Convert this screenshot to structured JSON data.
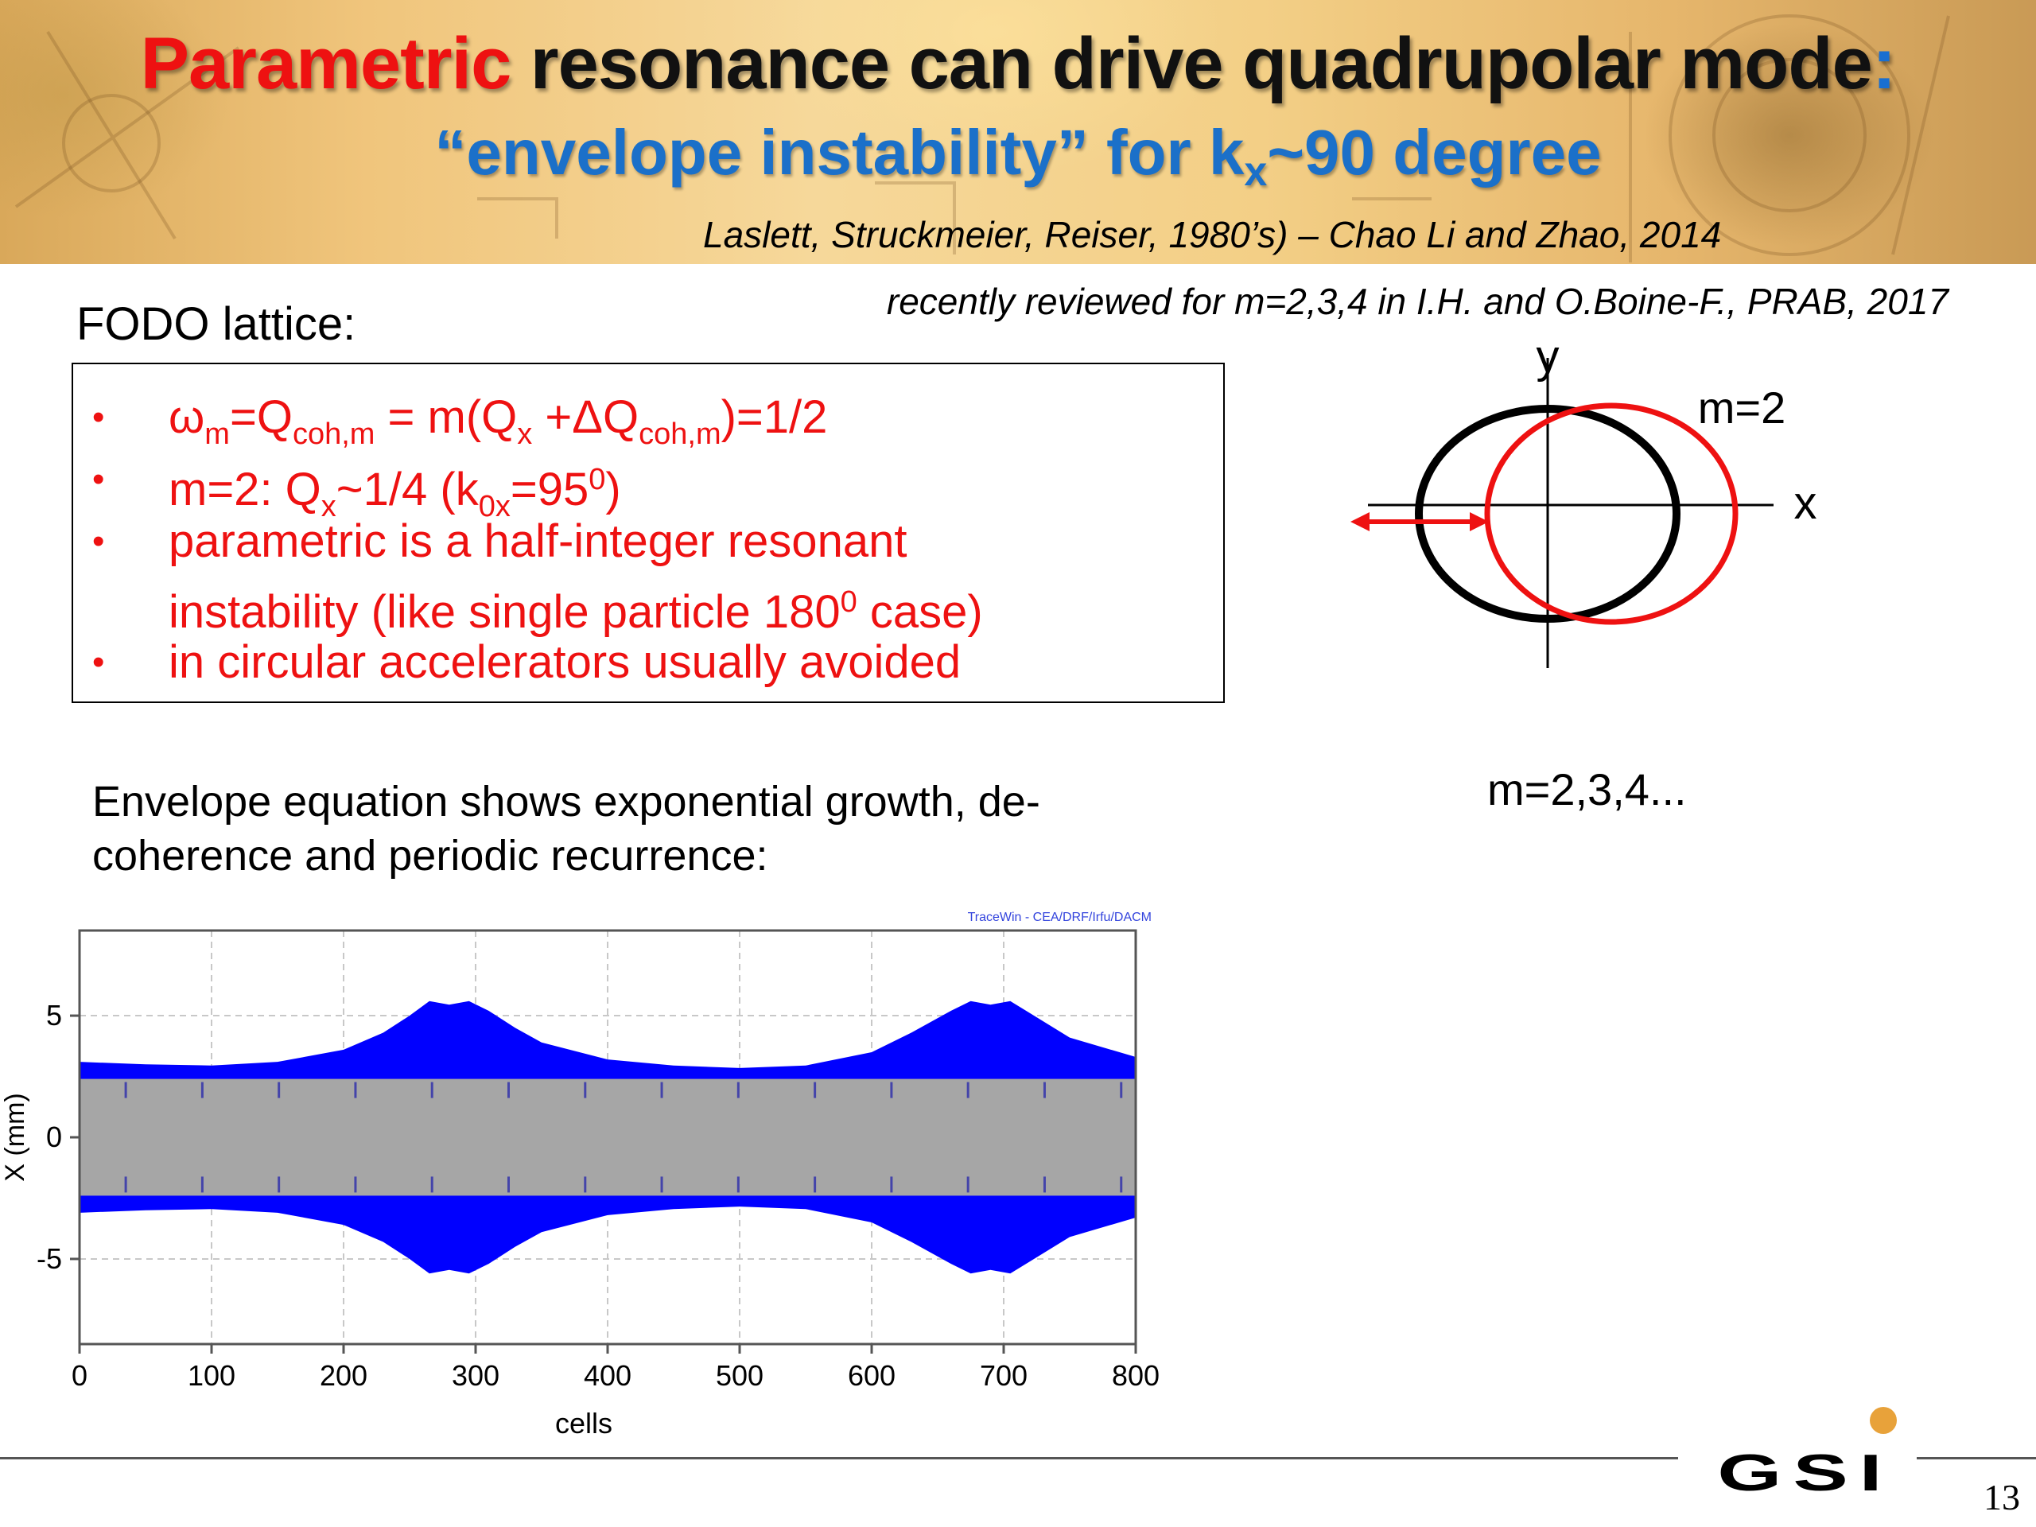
{
  "header": {
    "title_red": "Parametric",
    "title_black": " resonance can drive quadrupolar mode",
    "title_colon": ":",
    "subtitle_pre": "“envelope instability” for k",
    "subtitle_sub": "x",
    "subtitle_post": "~90 degree",
    "reference": "Laslett, Struckmeier, Reiser, 1980’s) – Chao Li and Zhao, 2014"
  },
  "review_note": "recently reviewed for m=2,3,4 in I.H. and O.Boine-F., PRAB, 2017",
  "fodo": {
    "label": "FODO lattice:",
    "bullet_symbol": "•",
    "b1": {
      "omega": "ω",
      "m_sub": "m",
      "eq1": "=Q",
      "coh_sub1": "coh,m",
      "eq2": " = m(Q",
      "x_sub": "x",
      "eq3": " +ΔQ",
      "coh_sub2": "coh,m",
      "eq4": ")=1/2"
    },
    "b2": {
      "pre": "m=2: Q",
      "x_sub": "x",
      "mid": "~1/4 (k",
      "k_sub": "0x",
      "post": "=95",
      "sup": "0",
      "end": ")"
    },
    "b3": {
      "line1": "parametric is a half-integer resonant",
      "line2_pre": "instability (like single particle 180",
      "line2_sup": "0",
      "line2_post": " case)"
    },
    "b4": "in circular accelerators usually avoided"
  },
  "diagram": {
    "y_label": "y",
    "x_label": "x",
    "mode_label": "m=2",
    "colors": {
      "unperturbed": "#000000",
      "perturbed": "#ee1111"
    }
  },
  "modes_label": "m=2,3,4...",
  "envelope_text": {
    "line1": "Envelope equation shows exponential growth, de-",
    "line2": "coherence and periodic recurrence:"
  },
  "chart_data": {
    "type": "area",
    "watermark": "TraceWin - CEA/DRF/Irfu/DACM",
    "xlabel": "cells",
    "ylabel": "X (mm)",
    "xlim": [
      0,
      800
    ],
    "ylim": [
      -8.5,
      8.5
    ],
    "xticks": [
      "0",
      "100",
      "200",
      "300",
      "400",
      "500",
      "600",
      "700",
      "800"
    ],
    "yticks": [
      "5",
      "0",
      "-5"
    ],
    "grid": true,
    "series": [
      {
        "color": "#0000ff",
        "x": [
          0,
          50,
          100,
          150,
          200,
          230,
          250,
          265,
          280,
          295,
          310,
          330,
          350,
          400,
          450,
          500,
          550,
          600,
          630,
          660,
          675,
          690,
          705,
          720,
          750,
          800
        ],
        "upper": [
          3.1,
          3.0,
          2.95,
          3.1,
          3.6,
          4.3,
          5.0,
          5.6,
          5.45,
          5.6,
          5.2,
          4.5,
          3.9,
          3.2,
          2.95,
          2.85,
          2.95,
          3.5,
          4.3,
          5.2,
          5.6,
          5.45,
          5.6,
          5.1,
          4.1,
          3.3
        ],
        "lower": [
          -3.1,
          -3.0,
          -2.95,
          -3.1,
          -3.6,
          -4.3,
          -5.0,
          -5.6,
          -5.45,
          -5.6,
          -5.2,
          -4.5,
          -3.9,
          -3.2,
          -2.95,
          -2.85,
          -2.95,
          -3.5,
          -4.3,
          -5.2,
          -5.6,
          -5.45,
          -5.6,
          -5.1,
          -4.1,
          -3.3
        ]
      }
    ],
    "aperture_band": {
      "color": "#a6a6a6",
      "y_range": [
        -2.4,
        2.4
      ]
    }
  },
  "footer": {
    "logo_text": "GSI",
    "logo_dot_color": "#e8a23a",
    "page_number": "13"
  }
}
